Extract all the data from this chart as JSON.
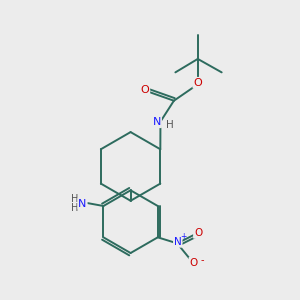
{
  "background_color": "#ececec",
  "bond_color": "#2d6b5e",
  "atom_colors": {
    "N": "#1a1aff",
    "O": "#cc0000",
    "C": "#2d6b5e",
    "H": "#555555"
  },
  "figsize": [
    3.0,
    3.0
  ],
  "dpi": 100
}
